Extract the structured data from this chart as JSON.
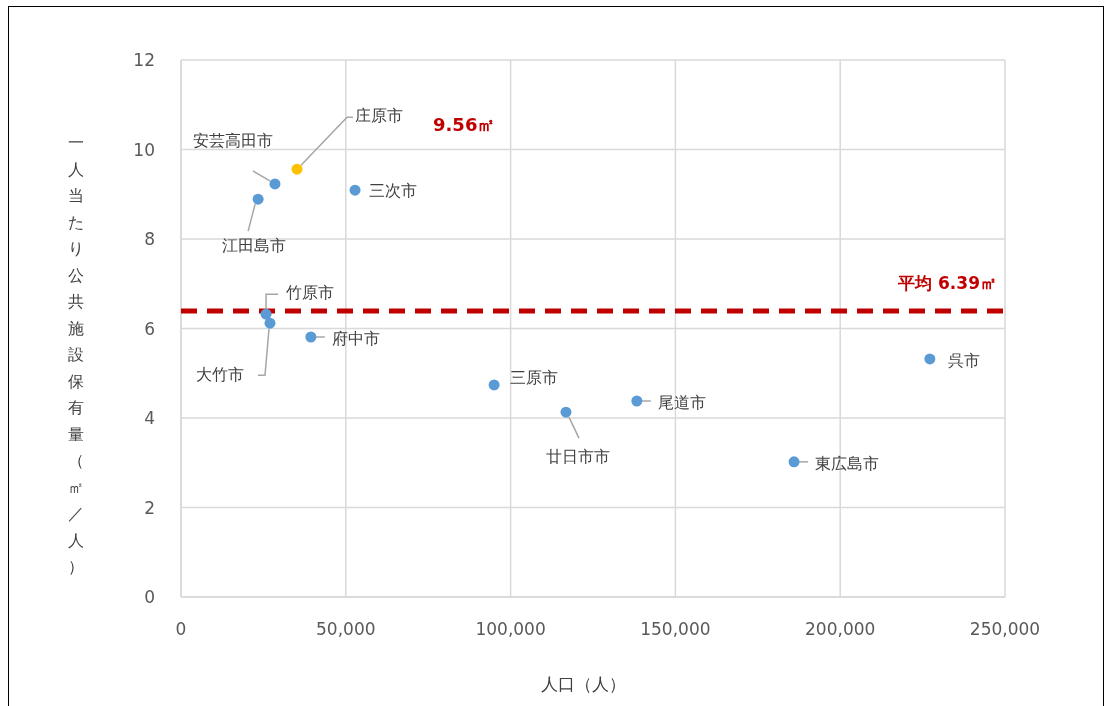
{
  "chart_data": {
    "type": "scatter",
    "xlabel": "人口（人）",
    "ylabel": "一人当たり公共施設保有量（㎡／人）",
    "x": [
      35200,
      28500,
      23400,
      52800,
      25800,
      27000,
      39400,
      95000,
      116800,
      138300,
      186000,
      227200
    ],
    "values": [
      9.56,
      9.23,
      8.89,
      9.09,
      6.32,
      6.12,
      5.81,
      4.74,
      4.13,
      4.38,
      3.02,
      5.32
    ],
    "colors": [
      "#ffc000",
      "#5b9bd5",
      "#5b9bd5",
      "#5b9bd5",
      "#5b9bd5",
      "#5b9bd5",
      "#5b9bd5",
      "#5b9bd5",
      "#5b9bd5",
      "#5b9bd5",
      "#5b9bd5",
      "#5b9bd5"
    ],
    "marker": "circle",
    "grid": true,
    "xlim": [
      0,
      250000
    ],
    "xticks": [
      {
        "value": 0,
        "label": "0"
      },
      {
        "value": 50000,
        "label": "50,000"
      },
      {
        "value": 100000,
        "label": "100,000"
      },
      {
        "value": 150000,
        "label": "150,000"
      },
      {
        "value": 200000,
        "label": "200,000"
      },
      {
        "value": 250000,
        "label": "250,000"
      }
    ],
    "ylim": [
      0,
      12
    ],
    "yticks": [
      0,
      2,
      4,
      6,
      8,
      10,
      12
    ],
    "ref_lines": [
      {
        "axis": "y",
        "value": 6.39,
        "label": "平均  6.39㎡",
        "color": "#c00000",
        "line_style": "dashed"
      }
    ],
    "annotations": [
      {
        "text": "庄原市",
        "x": 35200,
        "y": 9.56
      },
      "9.56㎡",
      {
        "text": "安芸高田市",
        "x": 28500,
        "y": 9.23
      },
      {
        "text": "江田島市",
        "x": 23400,
        "y": 8.89
      },
      {
        "text": "三次市",
        "x": 52800,
        "y": 9.09
      },
      {
        "text": "竹原市",
        "x": 25800,
        "y": 6.32
      },
      {
        "text": "大竹市",
        "x": 27000,
        "y": 6.12
      },
      {
        "text": "府中市",
        "x": 39400,
        "y": 5.81
      },
      {
        "text": "三原市",
        "x": 95000,
        "y": 4.74
      },
      {
        "text": "廿日市市",
        "x": 116800,
        "y": 4.13
      },
      {
        "text": "尾道市",
        "x": 138300,
        "y": 4.38
      },
      {
        "text": "東広島市",
        "x": 186000,
        "y": 3.02
      },
      {
        "text": "呉市",
        "x": 227200,
        "y": 5.32
      }
    ]
  }
}
